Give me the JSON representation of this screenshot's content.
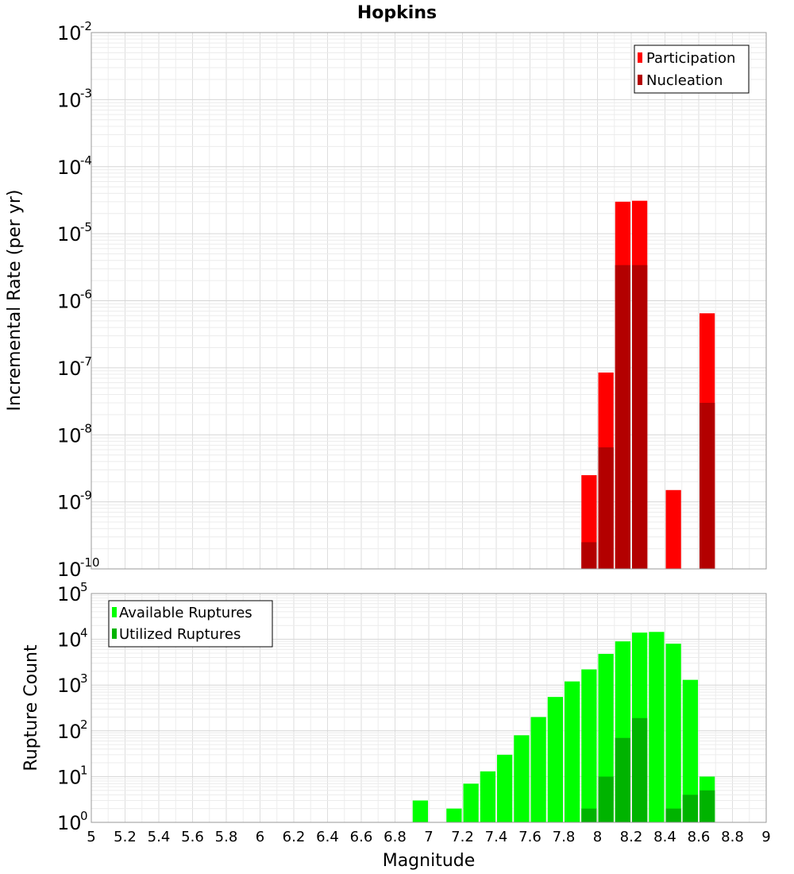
{
  "chart_data": [
    {
      "type": "bar",
      "panel": "top",
      "title": "Hopkins",
      "xlabel": "Magnitude",
      "ylabel": "Incremental Rate (per yr)",
      "yscale": "log",
      "ylim_exponents": [
        -10,
        -2
      ],
      "y_tick_base": "10",
      "xlim": [
        5,
        9
      ],
      "legend_position": "top-right",
      "grid": true,
      "series": [
        {
          "name": "Participation",
          "color": "#ff0000",
          "points": [
            {
              "x": 7.95,
              "y": 2.5e-09
            },
            {
              "x": 8.05,
              "y": 8.5e-08
            },
            {
              "x": 8.15,
              "y": 3e-05
            },
            {
              "x": 8.25,
              "y": 3.1e-05
            },
            {
              "x": 8.45,
              "y": 1.5e-09
            },
            {
              "x": 8.65,
              "y": 6.5e-07
            }
          ]
        },
        {
          "name": "Nucleation",
          "color": "#b30000",
          "points": [
            {
              "x": 7.95,
              "y": 2.5e-10
            },
            {
              "x": 8.05,
              "y": 6.5e-09
            },
            {
              "x": 8.15,
              "y": 3.4e-06
            },
            {
              "x": 8.25,
              "y": 3.4e-06
            },
            {
              "x": 8.65,
              "y": 3e-08
            }
          ]
        }
      ]
    },
    {
      "type": "bar",
      "panel": "bottom",
      "xlabel": "Magnitude",
      "ylabel": "Rupture Count",
      "yscale": "log",
      "ylim_exponents": [
        0,
        5
      ],
      "y_tick_base": "10",
      "xlim": [
        5,
        9
      ],
      "x_ticks": [
        "5",
        "5.2",
        "5.4",
        "5.6",
        "5.8",
        "6",
        "6.2",
        "6.4",
        "6.6",
        "6.8",
        "7",
        "7.2",
        "7.4",
        "7.6",
        "7.8",
        "8",
        "8.2",
        "8.4",
        "8.6",
        "8.8",
        "9"
      ],
      "legend_position": "top-left",
      "grid": true,
      "series": [
        {
          "name": "Available Ruptures",
          "color": "#00ff00",
          "points": [
            {
              "x": 6.95,
              "y": 3
            },
            {
              "x": 7.15,
              "y": 2
            },
            {
              "x": 7.25,
              "y": 7
            },
            {
              "x": 7.35,
              "y": 13
            },
            {
              "x": 7.45,
              "y": 30
            },
            {
              "x": 7.55,
              "y": 80
            },
            {
              "x": 7.65,
              "y": 200
            },
            {
              "x": 7.75,
              "y": 550
            },
            {
              "x": 7.85,
              "y": 1200
            },
            {
              "x": 7.95,
              "y": 2200
            },
            {
              "x": 8.05,
              "y": 4800
            },
            {
              "x": 8.15,
              "y": 9000
            },
            {
              "x": 8.25,
              "y": 14000
            },
            {
              "x": 8.35,
              "y": 14500
            },
            {
              "x": 8.45,
              "y": 8000
            },
            {
              "x": 8.55,
              "y": 1300
            },
            {
              "x": 8.65,
              "y": 10
            }
          ]
        },
        {
          "name": "Utilized Ruptures",
          "color": "#00b300",
          "points": [
            {
              "x": 7.95,
              "y": 2
            },
            {
              "x": 8.05,
              "y": 10
            },
            {
              "x": 8.15,
              "y": 70
            },
            {
              "x": 8.25,
              "y": 190
            },
            {
              "x": 8.45,
              "y": 2
            },
            {
              "x": 8.55,
              "y": 4
            },
            {
              "x": 8.65,
              "y": 5
            }
          ]
        }
      ]
    }
  ]
}
